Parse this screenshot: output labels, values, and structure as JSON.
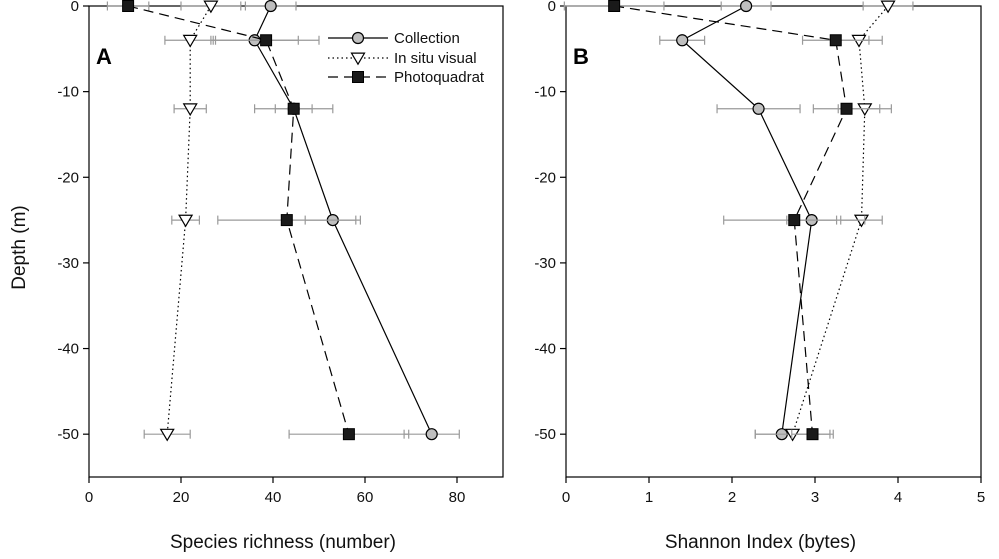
{
  "chart_data": [
    {
      "type": "line",
      "panel_label": "A",
      "xlabel": "Species richness (number)",
      "ylabel": "Depth (m)",
      "xlim": [
        0,
        90
      ],
      "ylim": [
        -55,
        0
      ],
      "xticks": [
        0,
        20,
        40,
        60,
        80
      ],
      "yticks": [
        0,
        -10,
        -20,
        -30,
        -40,
        -50
      ],
      "legend": "top-right",
      "series": [
        {
          "name": "Collection",
          "marker": "circle",
          "line": "solid",
          "points": [
            {
              "depth": 0,
              "value": 39.5,
              "err": 5.5
            },
            {
              "depth": -4,
              "value": 36,
              "err": 9.5
            },
            {
              "depth": -12,
              "value": 44.5,
              "err": 8.5
            },
            {
              "depth": -25,
              "value": 53,
              "err": 6
            },
            {
              "depth": -50,
              "value": 74.5,
              "err": 6
            }
          ]
        },
        {
          "name": "In situ visual",
          "marker": "triangle-down",
          "line": "dotted",
          "points": [
            {
              "depth": 0,
              "value": 26.5,
              "err": 6.5
            },
            {
              "depth": -4,
              "value": 22,
              "err": 5.5
            },
            {
              "depth": -12,
              "value": 22,
              "err": 3.5
            },
            {
              "depth": -25,
              "value": 21,
              "err": 3
            },
            {
              "depth": -50,
              "value": 17,
              "err": 5
            }
          ]
        },
        {
          "name": "Photoquadrat",
          "marker": "square",
          "line": "dashed",
          "points": [
            {
              "depth": 0,
              "value": 8.5,
              "err": 4.5
            },
            {
              "depth": -4,
              "value": 38.5,
              "err": 11.5
            },
            {
              "depth": -12,
              "value": 44.5,
              "err": 4
            },
            {
              "depth": -25,
              "value": 43,
              "err": 15
            },
            {
              "depth": -50,
              "value": 56.5,
              "err": 13
            }
          ]
        }
      ]
    },
    {
      "type": "line",
      "panel_label": "B",
      "xlabel": "Shannon Index (bytes)",
      "ylabel": "",
      "xlim": [
        0,
        5
      ],
      "ylim": [
        -55,
        0
      ],
      "xticks": [
        0,
        1,
        2,
        3,
        4,
        5
      ],
      "yticks": [
        0,
        -10,
        -20,
        -30,
        -40,
        -50
      ],
      "series": [
        {
          "name": "Collection",
          "marker": "circle",
          "line": "solid",
          "points": [
            {
              "depth": 0,
              "value": 2.17,
              "err": 0.3
            },
            {
              "depth": -4,
              "value": 1.4,
              "err": 0.27
            },
            {
              "depth": -12,
              "value": 2.32,
              "err": 0.5
            },
            {
              "depth": -25,
              "value": 2.96,
              "err": 0.3
            },
            {
              "depth": -50,
              "value": 2.6,
              "err": 0.32
            }
          ]
        },
        {
          "name": "In situ visual",
          "marker": "triangle-down",
          "line": "dotted",
          "points": [
            {
              "depth": 0,
              "value": 3.88,
              "err": 0.3
            },
            {
              "depth": -4,
              "value": 3.53,
              "err": 0.28
            },
            {
              "depth": -12,
              "value": 3.6,
              "err": 0.32
            },
            {
              "depth": -25,
              "value": 3.56,
              "err": 0.25
            },
            {
              "depth": -50,
              "value": 2.73,
              "err": 0.45
            }
          ]
        },
        {
          "name": "Photoquadrat",
          "marker": "square",
          "line": "dashed",
          "points": [
            {
              "depth": 0,
              "value": 0.58,
              "err": 0.6
            },
            {
              "depth": -4,
              "value": 3.25,
              "err": 0.4
            },
            {
              "depth": -12,
              "value": 3.38,
              "err": 0.4
            },
            {
              "depth": -25,
              "value": 2.75,
              "err": 0.85
            },
            {
              "depth": -50,
              "value": 2.97,
              "err": 0.25
            }
          ]
        }
      ]
    }
  ],
  "colors": {
    "axis": "#000000",
    "error_bar": "#9a9a9a",
    "collection_fill": "#bfbfbf",
    "triangle_fill": "#ffffff",
    "square_fill": "#1a1a1a"
  }
}
